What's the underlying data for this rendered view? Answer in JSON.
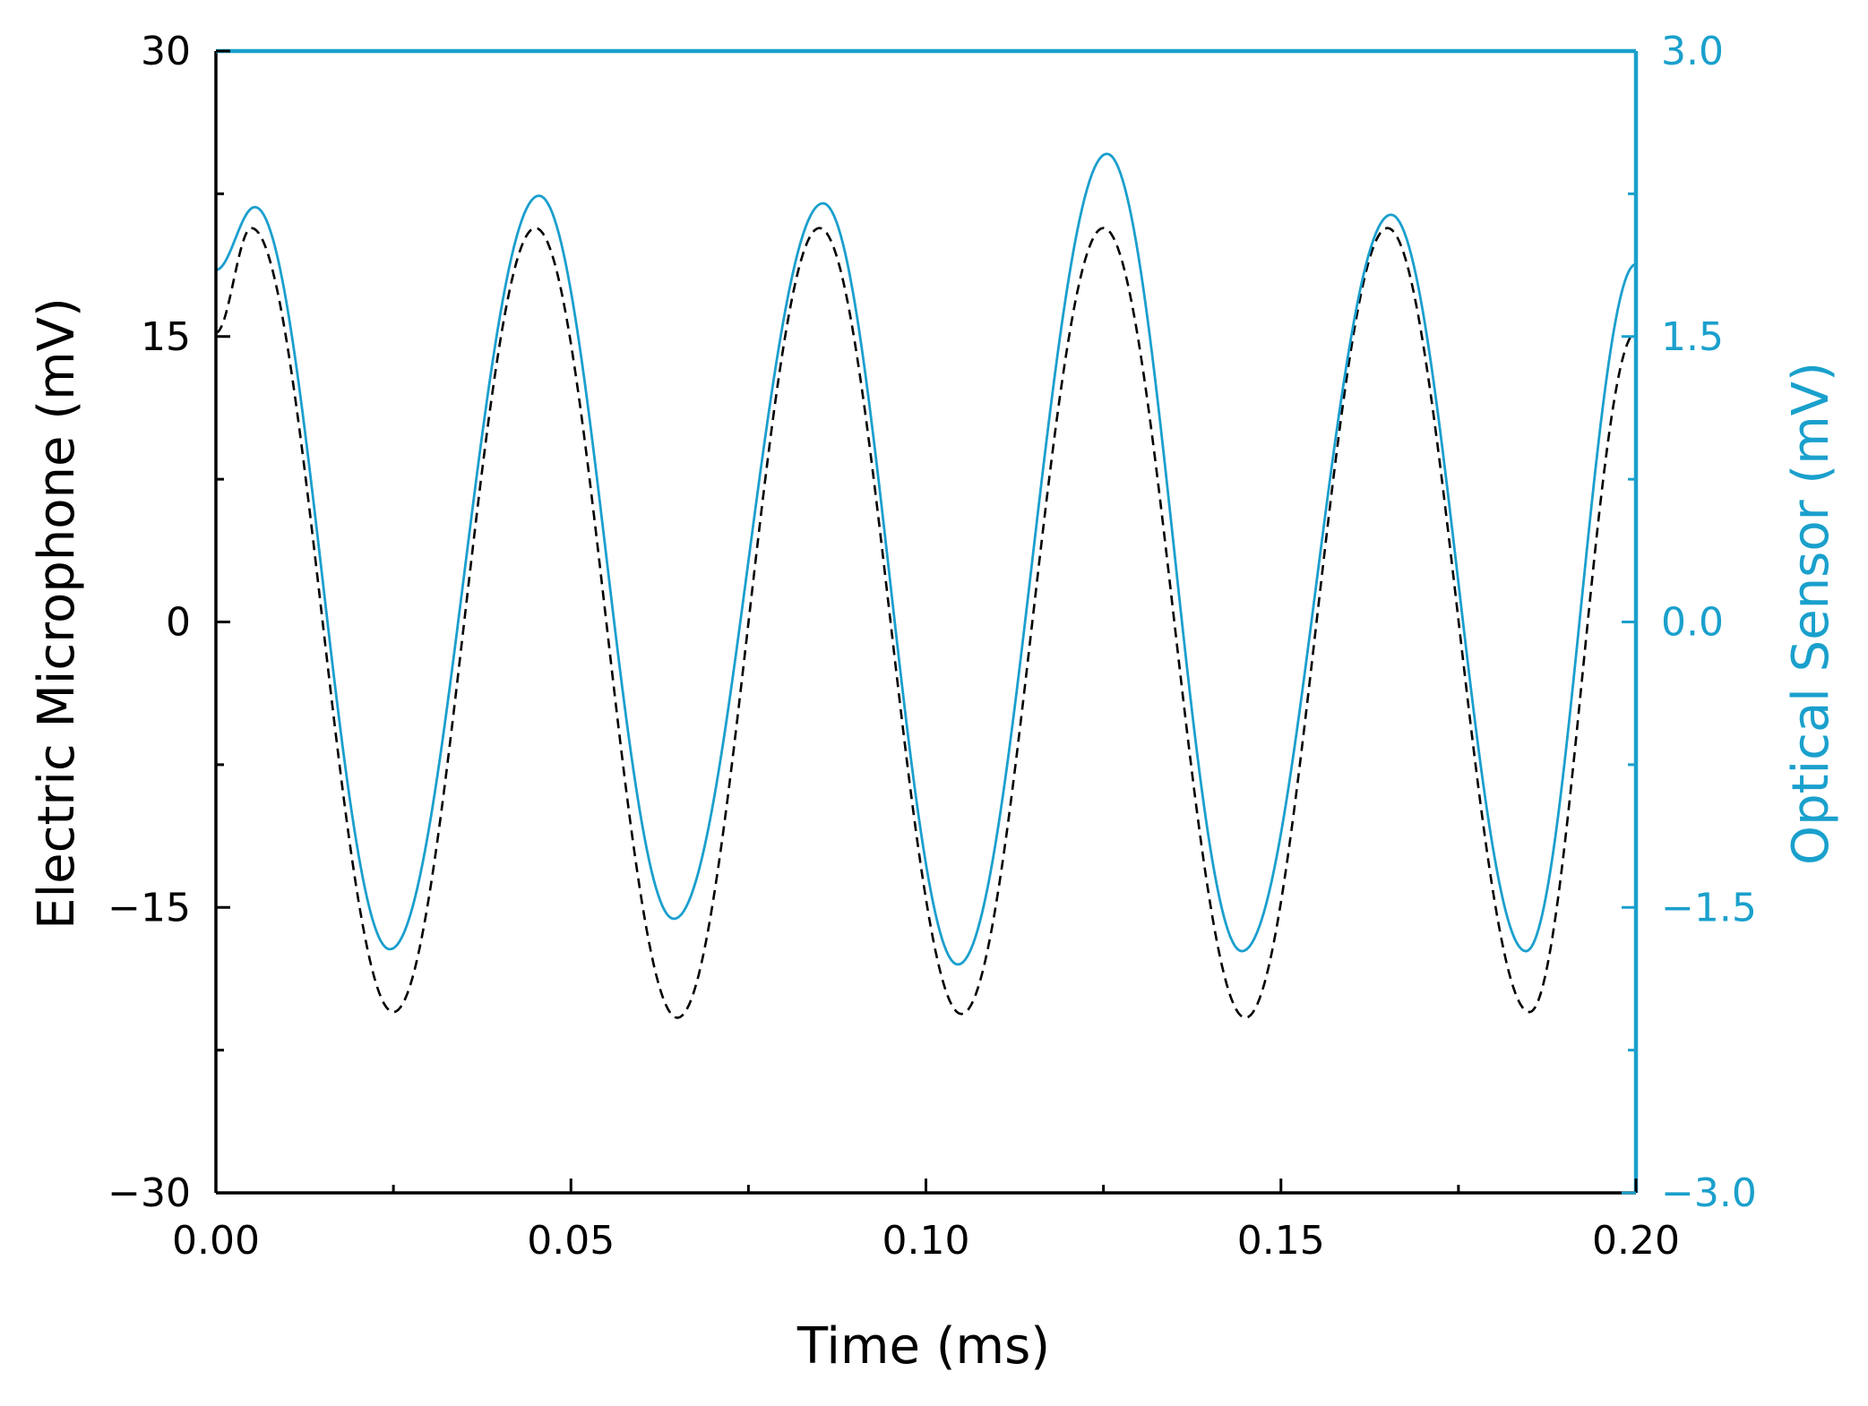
{
  "chart_data": {
    "type": "line",
    "xlabel": "Time (ms)",
    "ylabel_left": "Electric Microphone (mV)",
    "ylabel_right": "Optical Sensor (mV)",
    "xlim": [
      0.0,
      0.2
    ],
    "ylim_left": [
      -30,
      30
    ],
    "ylim_right": [
      -3.0,
      3.0
    ],
    "x_ticks": [
      "0.00",
      "0.05",
      "0.10",
      "0.15",
      "0.20"
    ],
    "y_ticks_left": [
      "30",
      "15",
      "0",
      "−15",
      "−30"
    ],
    "y_ticks_right": [
      "3.0",
      "1.5",
      "0.0",
      "−1.5",
      "−3.0"
    ],
    "grid": false,
    "legend": "none",
    "colors": {
      "axis": "#000000",
      "right_axis": "#1aa0cc",
      "optical": "#1a9fcd",
      "microphone": "#000000"
    },
    "series": [
      {
        "axis": "left",
        "style": "dashed",
        "color": "#000000",
        "x": [
          0.0,
          0.005,
          0.025,
          0.045,
          0.065,
          0.085,
          0.105,
          0.125,
          0.145,
          0.165,
          0.185,
          0.2
        ],
        "y": [
          15.2,
          20.7,
          -20.5,
          20.7,
          -20.8,
          20.7,
          -20.6,
          20.7,
          -20.8,
          20.7,
          -20.5,
          15.2
        ]
      },
      {
        "axis": "right",
        "style": "solid",
        "color": "#1a9fcd",
        "x": [
          0.0,
          0.0055,
          0.0245,
          0.0455,
          0.0645,
          0.0855,
          0.1045,
          0.1255,
          0.1445,
          0.1655,
          0.1845,
          0.2
        ],
        "y": [
          1.85,
          2.18,
          -1.72,
          2.24,
          -1.56,
          2.2,
          -1.8,
          2.46,
          -1.73,
          2.14,
          -1.73,
          1.88
        ]
      }
    ]
  }
}
